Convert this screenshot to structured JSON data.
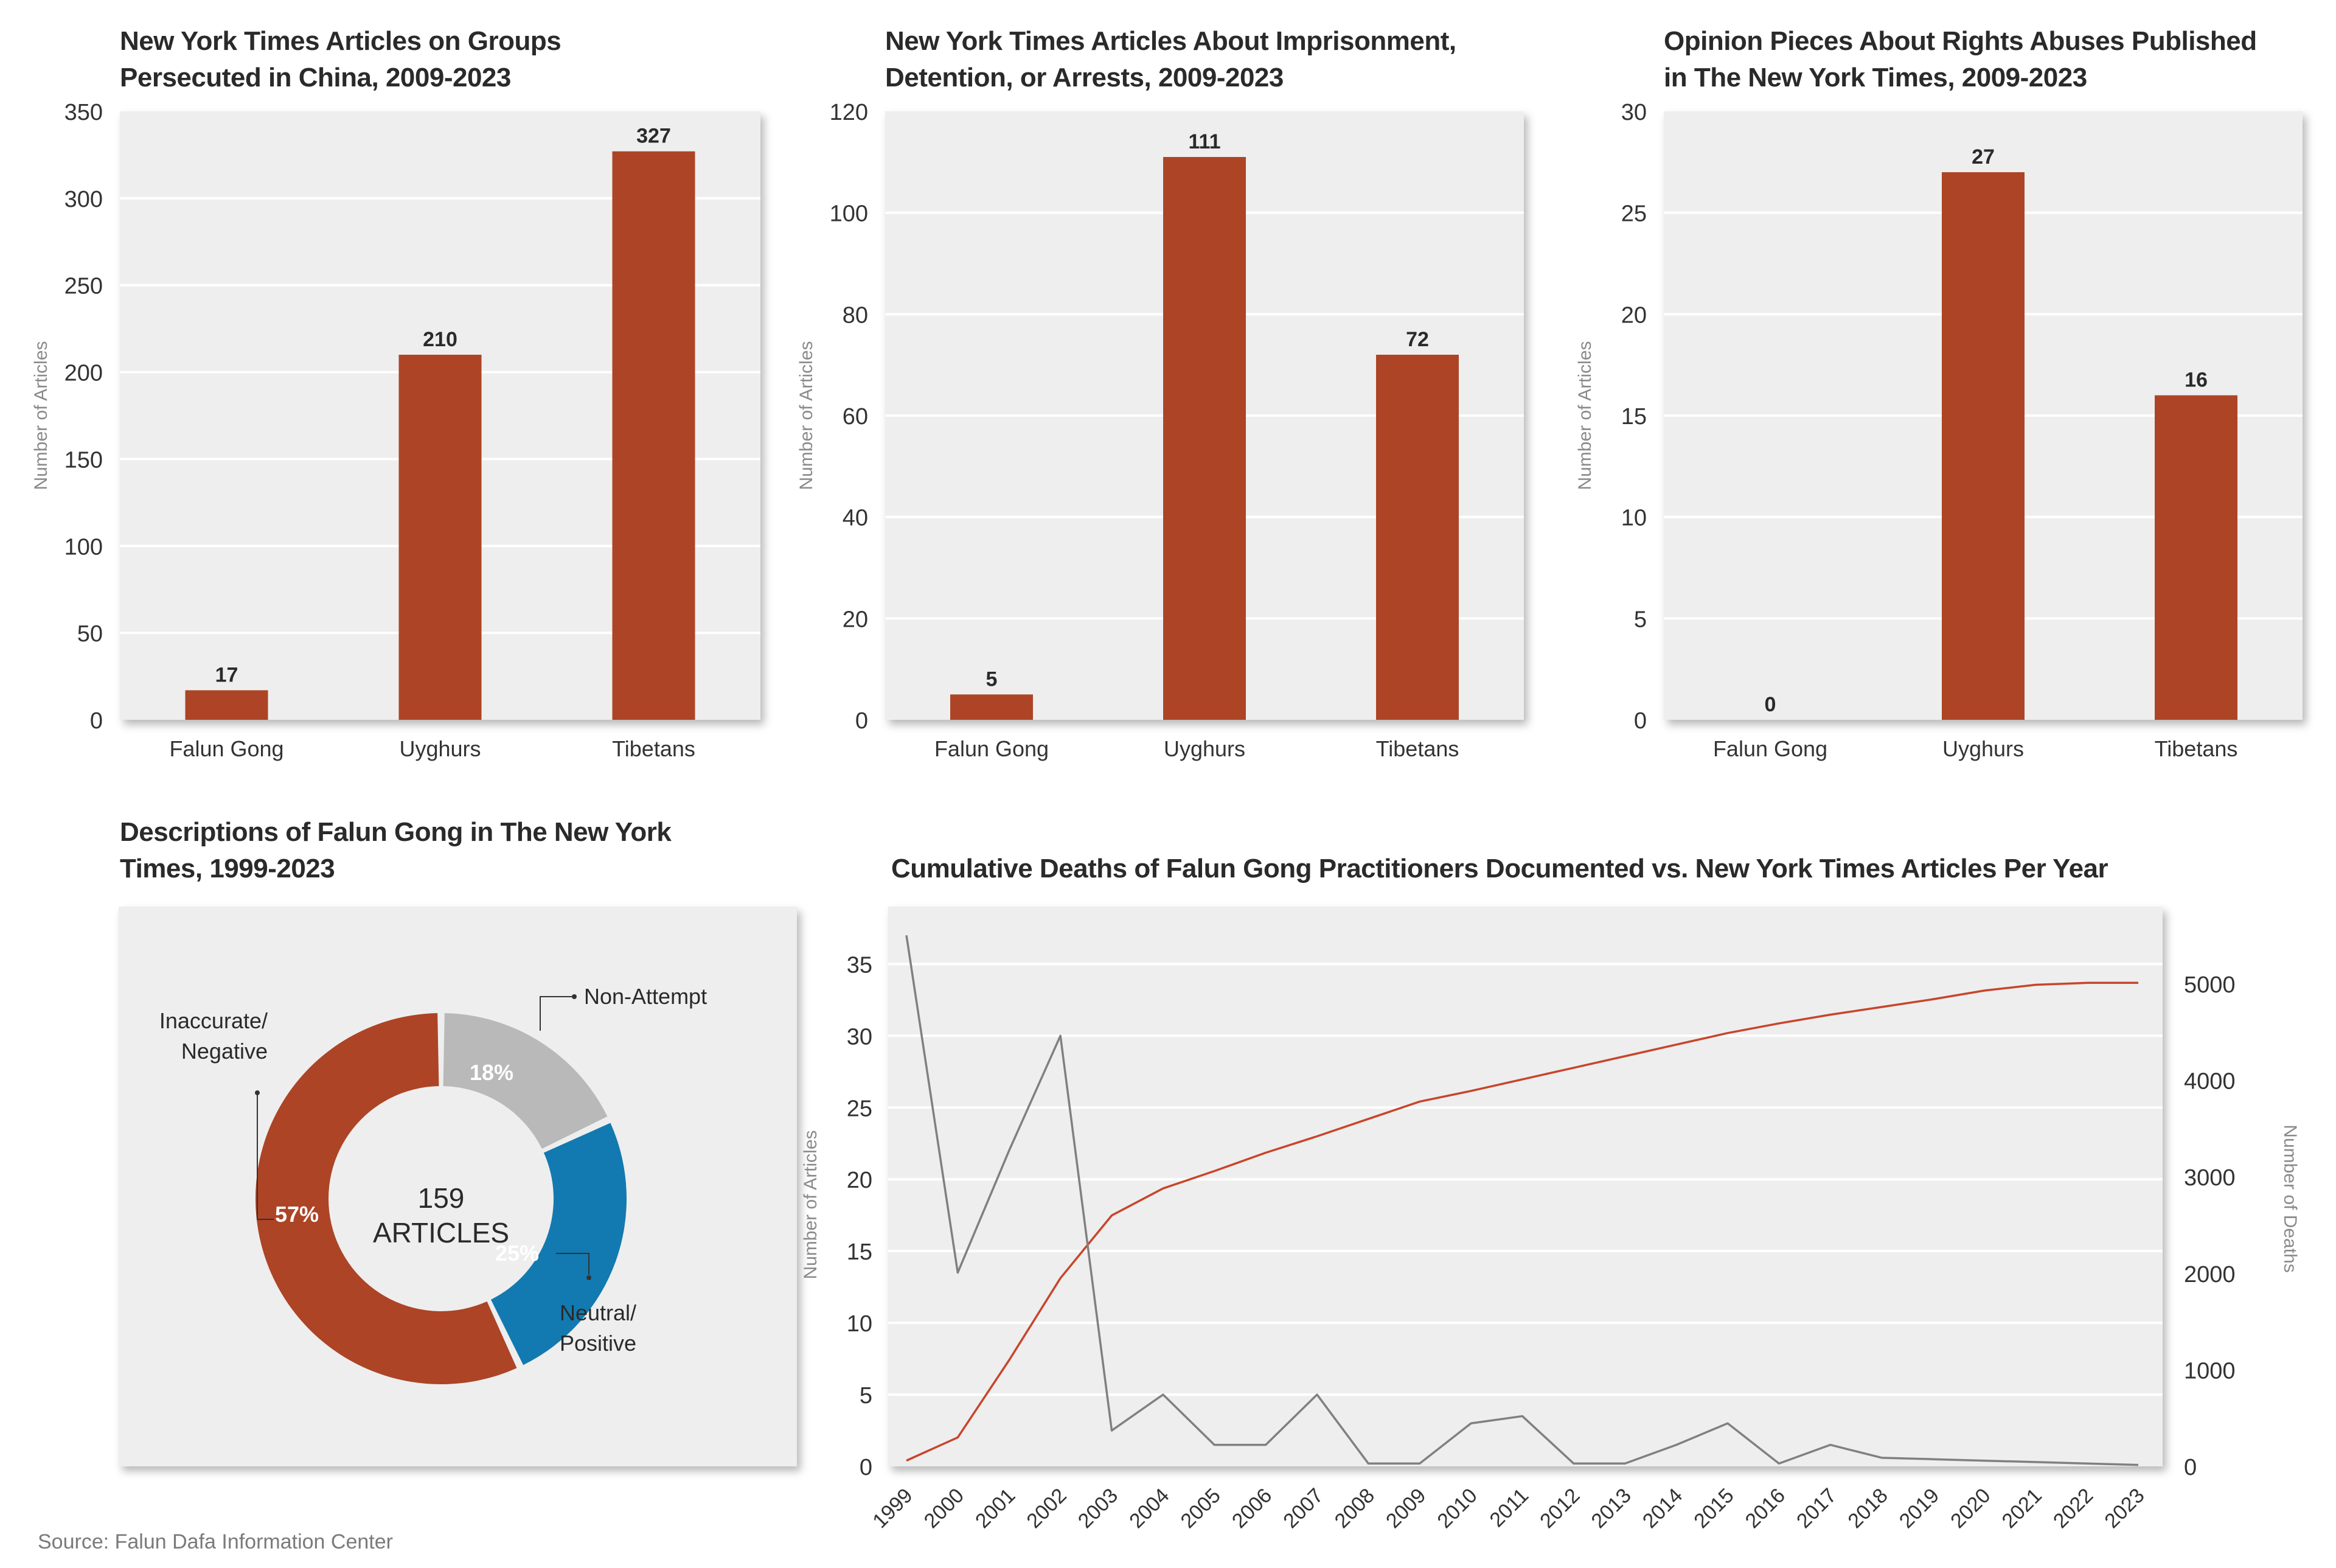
{
  "colors": {
    "bar": "#ad4426",
    "panel": "#eeeeee",
    "grid": "#ffffff",
    "deaths_line": "#c8452b",
    "articles_line": "#808080",
    "donut_negative": "#ad4426",
    "donut_nonattempt": "#b9b9b9",
    "donut_neutral": "#127ab0"
  },
  "source": "Source: Falun Dafa Information Center",
  "chart_data": [
    {
      "id": "groups",
      "type": "bar",
      "title": "New York Times Articles on Groups Persecuted in China, 2009-2023",
      "title_lines": [
        "New York Times Articles on Groups",
        "Persecuted in China, 2009-2023"
      ],
      "categories": [
        "Falun Gong",
        "Uyghurs",
        "Tibetans"
      ],
      "values": [
        17,
        210,
        327
      ],
      "data_labels": [
        "17",
        "210",
        "327"
      ],
      "ylabel": "Number of Articles",
      "ylim": [
        0,
        350
      ],
      "yticks": [
        0,
        50,
        100,
        150,
        200,
        250,
        300,
        350
      ],
      "grid": true
    },
    {
      "id": "imprisonment",
      "type": "bar",
      "title": "New York Times Articles About Imprisonment, Detention, or Arrests, 2009-2023",
      "title_lines": [
        "New York Times Articles About Imprisonment,",
        "Detention, or Arrests, 2009-2023"
      ],
      "categories": [
        "Falun Gong",
        "Uyghurs",
        "Tibetans"
      ],
      "values": [
        5,
        111,
        72
      ],
      "data_labels": [
        "5",
        "111",
        "72"
      ],
      "ylabel": "Number of Articles",
      "ylim": [
        0,
        120
      ],
      "yticks": [
        0,
        20,
        40,
        60,
        80,
        100,
        120
      ],
      "grid": true
    },
    {
      "id": "opinion",
      "type": "bar",
      "title": "Opinion Pieces About Rights Abuses Published in The New York Times, 2009-2023",
      "title_lines": [
        "Opinion Pieces About Rights Abuses Published",
        "in The New York Times, 2009-2023"
      ],
      "categories": [
        "Falun Gong",
        "Uyghurs",
        "Tibetans"
      ],
      "values": [
        0,
        27,
        16
      ],
      "data_labels": [
        "0",
        "27",
        "16"
      ],
      "ylabel": "Number of Articles",
      "ylim": [
        0,
        30
      ],
      "yticks": [
        0,
        5,
        10,
        15,
        20,
        25,
        30
      ],
      "grid": true
    },
    {
      "id": "descriptions",
      "type": "pie",
      "title": "Descriptions of Falun Gong in The New York Times, 1999-2023",
      "title_lines": [
        "Descriptions of Falun Gong in The New York",
        "Times, 1999-2023"
      ],
      "center_label": [
        "159",
        "ARTICLES"
      ],
      "total": 159,
      "slices": [
        {
          "label": "Non-Attempt",
          "label_lines": [
            "Non-Attempt"
          ],
          "percent": 18,
          "value_label": "18%"
        },
        {
          "label": "Neutral/Positive",
          "label_lines": [
            "Neutral/",
            "Positive"
          ],
          "percent": 25,
          "value_label": "25%"
        },
        {
          "label": "Inaccurate/Negative",
          "label_lines": [
            "Inaccurate/",
            "Negative"
          ],
          "percent": 57,
          "value_label": "57%"
        }
      ]
    },
    {
      "id": "deaths_vs_articles",
      "type": "line",
      "title": "Cumulative Deaths of Falun Gong Practitioners Documented vs. New York Times Articles Per Year",
      "x": [
        "1999",
        "2000",
        "2001",
        "2002",
        "2003",
        "2004",
        "2005",
        "2006",
        "2007",
        "2008",
        "2009",
        "2010",
        "2011",
        "2012",
        "2013",
        "2014",
        "2015",
        "2016",
        "2017",
        "2018",
        "2019",
        "2020",
        "2021",
        "2022",
        "2023"
      ],
      "ylabel_left": "Number of Articles",
      "ylabel_right": "Number of Deaths",
      "ylim_left": [
        0,
        39
      ],
      "yticks_left": [
        0,
        5,
        10,
        15,
        20,
        25,
        30,
        35
      ],
      "ylim_right": [
        0,
        5800
      ],
      "yticks_right": [
        0,
        1000,
        2000,
        3000,
        4000,
        5000
      ],
      "grid": true,
      "series": [
        {
          "name": "Cumulative Deaths",
          "axis": "right",
          "values": [
            60,
            300,
            1100,
            1950,
            2600,
            2880,
            3060,
            3250,
            3420,
            3600,
            3780,
            3890,
            4010,
            4130,
            4250,
            4370,
            4490,
            4590,
            4680,
            4760,
            4840,
            4930,
            4990,
            5010,
            5010
          ]
        },
        {
          "name": "NYT Articles Per Year",
          "axis": "left",
          "values": [
            37,
            13.5,
            22,
            30,
            2.5,
            5,
            1.5,
            1.5,
            5,
            0.2,
            0.2,
            3,
            3.5,
            0.2,
            0.2,
            1.5,
            3,
            0.2,
            1.5,
            0.6,
            0.5,
            0.4,
            0.3,
            0.2,
            0.1
          ]
        }
      ]
    }
  ]
}
